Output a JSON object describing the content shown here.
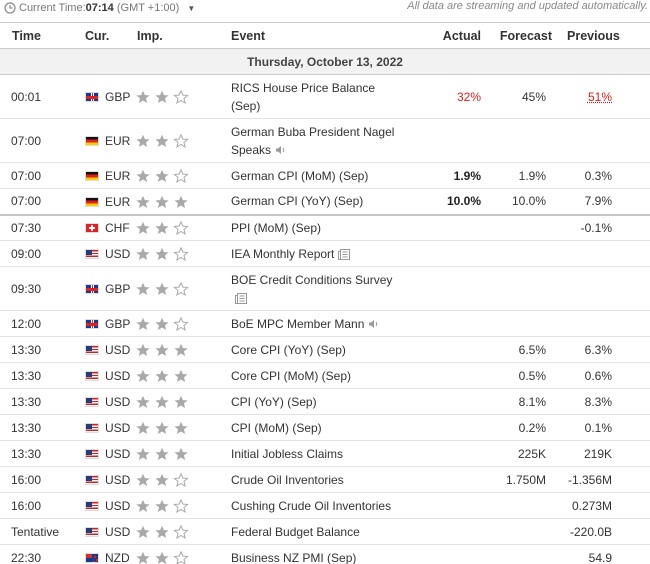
{
  "topbar": {
    "current_time_label": "Current Time:",
    "current_time": "07:14",
    "timezone": "(GMT +1:00)",
    "note": "All data are streaming and updated automatically."
  },
  "headers": {
    "time": "Time",
    "currency": "Cur.",
    "importance": "Imp.",
    "event": "Event",
    "actual": "Actual",
    "forecast": "Forecast",
    "previous": "Previous"
  },
  "day": "Thursday, October 13, 2022",
  "colors": {
    "red": "#d91e18",
    "star_on": "#a9a9a9",
    "star_off": "#a9a9a9"
  },
  "events": [
    {
      "time": "00:01",
      "flag": "gb",
      "currency": "GBP",
      "stars": 2,
      "lines": [
        "RICS House Price Balance",
        "(Sep)"
      ],
      "icon": "",
      "actual": "32%",
      "forecast": "45%",
      "previous": "51%",
      "actual_style": "red",
      "previous_style": "red-ul",
      "tall": true
    },
    {
      "time": "07:00",
      "flag": "de",
      "currency": "EUR",
      "stars": 2,
      "lines": [
        "German Buba President Nagel",
        "Speaks"
      ],
      "icon": "speaker-icon",
      "actual": "",
      "forecast": "",
      "previous": "",
      "tall": true
    },
    {
      "time": "07:00",
      "flag": "de",
      "currency": "EUR",
      "stars": 2,
      "lines": [
        "German CPI (MoM) (Sep)"
      ],
      "icon": "",
      "actual": "1.9%",
      "forecast": "1.9%",
      "previous": "0.3%",
      "actual_style": "bold"
    },
    {
      "time": "07:00",
      "flag": "de",
      "currency": "EUR",
      "stars": 3,
      "lines": [
        "German CPI (YoY) (Sep)"
      ],
      "icon": "",
      "actual": "10.0%",
      "forecast": "10.0%",
      "previous": "7.9%",
      "actual_style": "bold",
      "sep": true
    },
    {
      "time": "07:30",
      "flag": "ch",
      "currency": "CHF",
      "stars": 2,
      "lines": [
        "PPI (MoM) (Sep)"
      ],
      "icon": "",
      "actual": "",
      "forecast": "",
      "previous": "-0.1%"
    },
    {
      "time": "09:00",
      "flag": "us",
      "currency": "USD",
      "stars": 2,
      "lines": [
        "IEA Monthly Report"
      ],
      "icon": "report-icon",
      "actual": "",
      "forecast": "",
      "previous": ""
    },
    {
      "time": "09:30",
      "flag": "gb",
      "currency": "GBP",
      "stars": 2,
      "lines": [
        "BOE Credit Conditions Survey",
        ""
      ],
      "icon": "report-icon",
      "icon_newline": true,
      "actual": "",
      "forecast": "",
      "previous": "",
      "tall": true
    },
    {
      "time": "12:00",
      "flag": "gb",
      "currency": "GBP",
      "stars": 2,
      "lines": [
        "BoE MPC Member Mann"
      ],
      "icon": "speaker-icon",
      "actual": "",
      "forecast": "",
      "previous": ""
    },
    {
      "time": "13:30",
      "flag": "us",
      "currency": "USD",
      "stars": 3,
      "lines": [
        "Core CPI (YoY) (Sep)"
      ],
      "icon": "",
      "actual": "",
      "forecast": "6.5%",
      "previous": "6.3%"
    },
    {
      "time": "13:30",
      "flag": "us",
      "currency": "USD",
      "stars": 3,
      "lines": [
        "Core CPI (MoM) (Sep)"
      ],
      "icon": "",
      "actual": "",
      "forecast": "0.5%",
      "previous": "0.6%"
    },
    {
      "time": "13:30",
      "flag": "us",
      "currency": "USD",
      "stars": 3,
      "lines": [
        "CPI (YoY) (Sep)"
      ],
      "icon": "",
      "actual": "",
      "forecast": "8.1%",
      "previous": "8.3%"
    },
    {
      "time": "13:30",
      "flag": "us",
      "currency": "USD",
      "stars": 3,
      "lines": [
        "CPI (MoM) (Sep)"
      ],
      "icon": "",
      "actual": "",
      "forecast": "0.2%",
      "previous": "0.1%"
    },
    {
      "time": "13:30",
      "flag": "us",
      "currency": "USD",
      "stars": 3,
      "lines": [
        "Initial Jobless Claims"
      ],
      "icon": "",
      "actual": "",
      "forecast": "225K",
      "previous": "219K"
    },
    {
      "time": "16:00",
      "flag": "us",
      "currency": "USD",
      "stars": 2,
      "lines": [
        "Crude Oil Inventories"
      ],
      "icon": "",
      "actual": "",
      "forecast": "1.750M",
      "previous": "-1.356M"
    },
    {
      "time": "16:00",
      "flag": "us",
      "currency": "USD",
      "stars": 2,
      "lines": [
        "Cushing Crude Oil Inventories"
      ],
      "icon": "",
      "actual": "",
      "forecast": "",
      "previous": "0.273M"
    },
    {
      "time": "Tentative",
      "flag": "us",
      "currency": "USD",
      "stars": 2,
      "lines": [
        "Federal Budget Balance"
      ],
      "icon": "",
      "actual": "",
      "forecast": "",
      "previous": "-220.0B"
    },
    {
      "time": "22:30",
      "flag": "nz",
      "currency": "NZD",
      "stars": 2,
      "lines": [
        "Business NZ PMI (Sep)"
      ],
      "icon": "",
      "actual": "",
      "forecast": "",
      "previous": "54.9"
    }
  ]
}
